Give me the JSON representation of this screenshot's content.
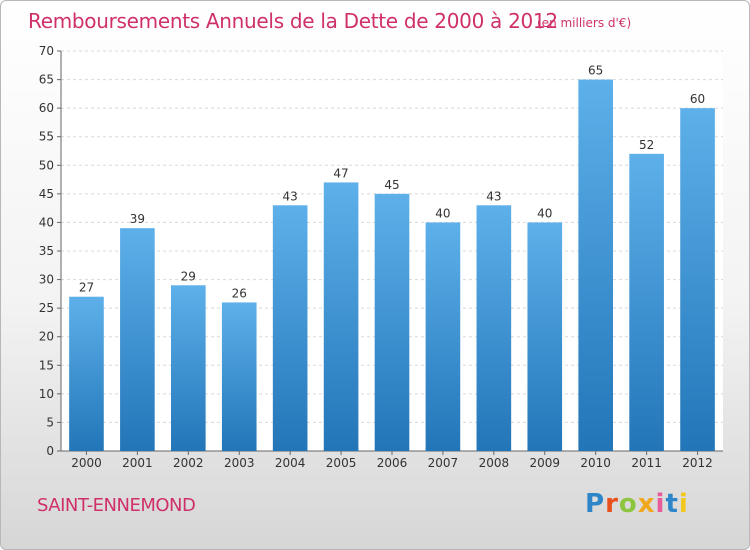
{
  "header": {
    "title": "Remboursements Annuels de la Dette de 2000 à 2012",
    "unit": "(en milliers d'€)"
  },
  "footer": {
    "commune": "SAINT-ENNEMOND",
    "logo": [
      "P",
      "r",
      "o",
      "x",
      "i",
      "t",
      "i"
    ]
  },
  "colors": {
    "title": "#d0306a",
    "bar_top": "#5eb0ea",
    "bar_bottom": "#2276b8",
    "grid": "#d8d8d8"
  },
  "chart_data": {
    "type": "bar",
    "title": "Remboursements Annuels de la Dette de 2000 à 2012",
    "xlabel": "",
    "ylabel": "",
    "ylim": [
      0,
      70
    ],
    "yticks": [
      0,
      5,
      10,
      15,
      20,
      25,
      30,
      35,
      40,
      45,
      50,
      55,
      60,
      65,
      70
    ],
    "grid": true,
    "categories": [
      "2000",
      "2001",
      "2002",
      "2003",
      "2004",
      "2005",
      "2006",
      "2007",
      "2008",
      "2009",
      "2010",
      "2011",
      "2012"
    ],
    "values": [
      27,
      39,
      29,
      26,
      43,
      47,
      45,
      40,
      43,
      40,
      65,
      52,
      60
    ]
  }
}
